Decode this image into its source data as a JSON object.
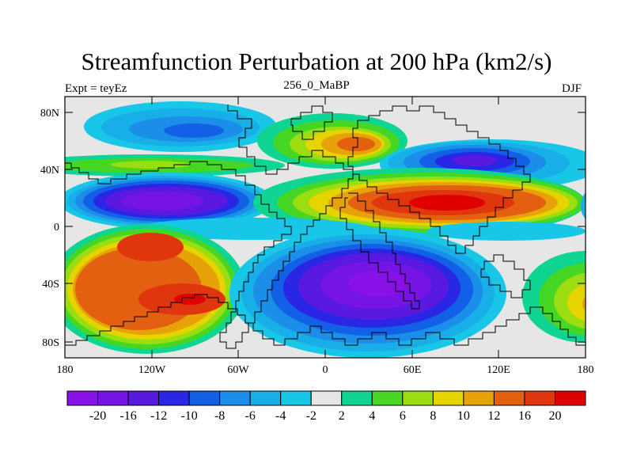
{
  "title": "Streamfunction Perturbation at 200 hPa (km2/s)",
  "subtitle_left": "Expt = teyEz",
  "subtitle_center": "256_0_MaBP",
  "subtitle_right": "DJF",
  "lat_labels": [
    "80N",
    "40N",
    "0",
    "40S",
    "80S"
  ],
  "lon_labels": [
    "180",
    "120W",
    "60W",
    "0",
    "60E",
    "120E",
    "180"
  ],
  "colorbar": {
    "levels": [
      "-20",
      "-16",
      "-12",
      "-10",
      "-8",
      "-6",
      "-4",
      "-2",
      "2",
      "4",
      "6",
      "8",
      "10",
      "12",
      "16",
      "20"
    ],
    "colors": [
      "#8a10e8",
      "#7614e6",
      "#5a19e0",
      "#2a26e6",
      "#1260e6",
      "#1a8ee8",
      "#18aee8",
      "#18c6e8",
      "#e6e6e6",
      "#10d492",
      "#46d624",
      "#9ade12",
      "#e6d400",
      "#e6a208",
      "#e26010",
      "#e0360e",
      "#e00000"
    ]
  }
}
